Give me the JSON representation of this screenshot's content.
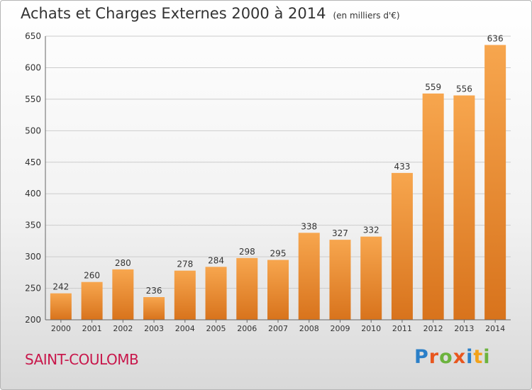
{
  "header": {
    "title": "Achats et Charges Externes 2000 à 2014",
    "subtitle": "(en milliers d'€)"
  },
  "footer": {
    "town": "SAINT-COULOMB",
    "logo_text": "Proxiti",
    "logo_colors": [
      "#2a7fc8",
      "#e8561e",
      "#6cb33e",
      "#e8561e",
      "#2a7fc8",
      "#f2a21a",
      "#6cb33e"
    ]
  },
  "colors": {
    "bar_top": "#f7a64e",
    "bar_bottom": "#d8731c",
    "grid": "#cccccc",
    "axis": "#666666",
    "text": "#333333"
  },
  "chart_data": {
    "type": "bar",
    "categories": [
      "2000",
      "2001",
      "2002",
      "2003",
      "2004",
      "2005",
      "2006",
      "2007",
      "2008",
      "2009",
      "2010",
      "2011",
      "2012",
      "2013",
      "2014"
    ],
    "values": [
      242,
      260,
      280,
      236,
      278,
      284,
      298,
      295,
      338,
      327,
      332,
      433,
      559,
      556,
      636
    ],
    "ylim": [
      200,
      650
    ],
    "yticks": [
      200,
      250,
      300,
      350,
      400,
      450,
      500,
      550,
      600,
      650
    ],
    "grid": true
  }
}
